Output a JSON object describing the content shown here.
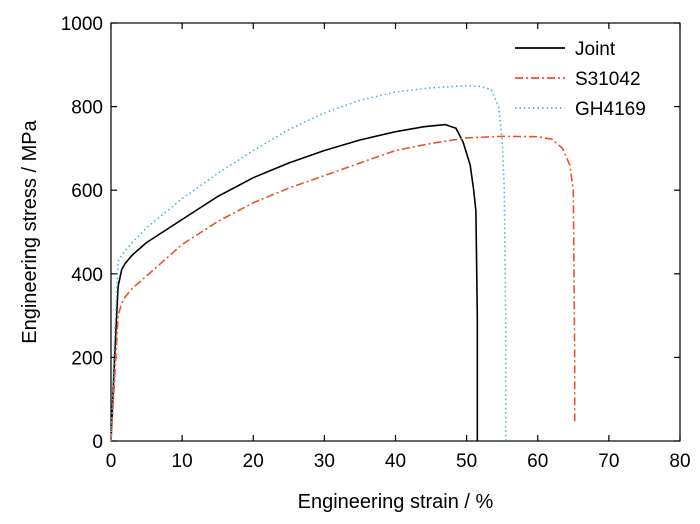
{
  "chart_data": {
    "type": "line",
    "title": "",
    "xlabel": "Engineering strain / %",
    "ylabel": "Engineering stress / MPa",
    "xlim": [
      0,
      80
    ],
    "ylim": [
      0,
      1000
    ],
    "x_ticks": [
      0,
      10,
      20,
      30,
      40,
      50,
      60,
      70,
      80
    ],
    "y_ticks": [
      0,
      200,
      400,
      600,
      800,
      1000
    ],
    "x_tick_labels": [
      "0",
      "10",
      "20",
      "30",
      "40",
      "50",
      "60",
      "70",
      "80"
    ],
    "y_tick_labels": [
      "0",
      "200",
      "400",
      "600",
      "800",
      "1000"
    ],
    "grid": false,
    "legend_position": "top-right",
    "series": [
      {
        "name": "Joint",
        "color": "#000000",
        "line_style": "solid",
        "x": [
          0.0,
          0.5,
          1.0,
          1.5,
          2.0,
          3.0,
          5.0,
          10.0,
          15.0,
          20.0,
          25.0,
          30.0,
          35.0,
          40.0,
          44.0,
          47.0,
          48.5,
          49.5,
          50.5,
          51.0,
          51.3,
          51.5,
          51.5
        ],
        "y": [
          0,
          200,
          370,
          410,
          425,
          445,
          475,
          530,
          585,
          630,
          665,
          695,
          720,
          740,
          752,
          757,
          748,
          715,
          660,
          600,
          550,
          300,
          0
        ]
      },
      {
        "name": "S31042",
        "color": "#e8542a",
        "line_style": "dashdot",
        "x": [
          0.0,
          0.5,
          1.0,
          1.5,
          2.0,
          3.0,
          5.0,
          10.0,
          15.0,
          20.0,
          25.0,
          30.0,
          35.0,
          40.0,
          45.0,
          50.0,
          55.0,
          60.0,
          62.0,
          63.5,
          64.5,
          65.0,
          65.1,
          65.2,
          65.2
        ],
        "y": [
          0,
          150,
          300,
          330,
          345,
          365,
          395,
          470,
          525,
          570,
          605,
          635,
          665,
          695,
          712,
          725,
          729,
          728,
          722,
          700,
          660,
          600,
          400,
          200,
          40
        ]
      },
      {
        "name": "GH4169",
        "color": "#4ab0dd",
        "line_style": "dotted",
        "x": [
          0.0,
          0.5,
          1.0,
          1.5,
          2.0,
          3.0,
          5.0,
          10.0,
          15.0,
          20.0,
          25.0,
          30.0,
          35.0,
          40.0,
          45.0,
          50.0,
          52.0,
          53.5,
          54.5,
          55.0,
          55.3,
          55.5,
          55.5
        ],
        "y": [
          0,
          250,
          430,
          445,
          455,
          475,
          510,
          580,
          640,
          695,
          745,
          785,
          815,
          835,
          845,
          850,
          848,
          840,
          800,
          720,
          600,
          300,
          0
        ]
      }
    ]
  }
}
